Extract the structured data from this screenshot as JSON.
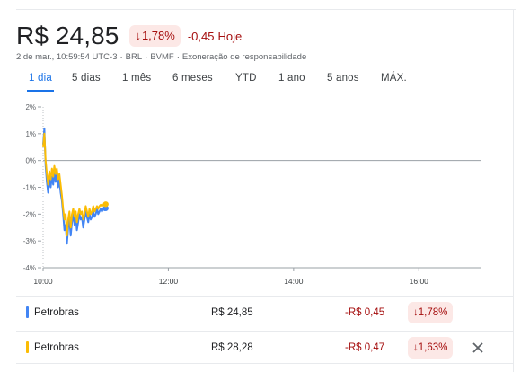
{
  "quote": {
    "price": "R$ 24,85",
    "pct_change": "1,78%",
    "abs_change": "-0,45",
    "today_label": "Hoje",
    "down_arrow": "↓"
  },
  "meta": {
    "timestamp": "2 de mar., 10:59:54 UTC-3",
    "currency": "BRL",
    "exchange": "BVMF",
    "disclaimer": "Exoneração de responsabilidade",
    "separator": "·"
  },
  "tabs": [
    {
      "label": "1 dia",
      "active": true
    },
    {
      "label": "5 dias",
      "active": false
    },
    {
      "label": "1 mês",
      "active": false
    },
    {
      "label": "6 meses",
      "active": false
    },
    {
      "label": "YTD",
      "active": false
    },
    {
      "label": "1 ano",
      "active": false
    },
    {
      "label": "5 anos",
      "active": false
    },
    {
      "label": "MÁX.",
      "active": false
    }
  ],
  "chart_data": {
    "type": "line",
    "y_tick_labels": [
      "2%",
      "1%",
      "0%",
      "-1%",
      "-2%",
      "-3%",
      "-4%"
    ],
    "y_ticks": [
      2,
      1,
      0,
      -1,
      -2,
      -3,
      -4
    ],
    "ylim": [
      -4,
      2
    ],
    "x_tick_labels": [
      "10:00",
      "12:00",
      "14:00",
      "16:00"
    ],
    "x_ticks_hours": [
      10,
      12,
      14,
      16
    ],
    "xlim_hours": [
      10,
      17
    ],
    "baseline": 0,
    "series": [
      {
        "name": "Petrobras",
        "color": "#4285f4",
        "x": [
          10.0,
          10.02,
          10.04,
          10.06,
          10.08,
          10.1,
          10.12,
          10.14,
          10.16,
          10.18,
          10.2,
          10.22,
          10.24,
          10.26,
          10.28,
          10.3,
          10.32,
          10.34,
          10.36,
          10.38,
          10.4,
          10.42,
          10.44,
          10.46,
          10.48,
          10.5,
          10.52,
          10.54,
          10.56,
          10.58,
          10.6,
          10.62,
          10.64,
          10.66,
          10.68,
          10.7,
          10.72,
          10.74,
          10.76,
          10.78,
          10.8,
          10.82,
          10.84,
          10.86,
          10.88,
          10.9,
          10.92,
          10.94,
          10.96,
          10.98,
          11.0
        ],
        "values": [
          0.6,
          1.2,
          -0.2,
          -0.8,
          -1.2,
          -0.7,
          -1.0,
          -0.6,
          -0.9,
          -0.4,
          -0.8,
          -0.5,
          -1.0,
          -0.7,
          -1.2,
          -1.5,
          -2.0,
          -2.6,
          -2.4,
          -3.1,
          -2.5,
          -2.2,
          -2.8,
          -2.3,
          -2.0,
          -2.4,
          -2.1,
          -2.6,
          -2.3,
          -2.0,
          -2.2,
          -2.1,
          -2.5,
          -2.2,
          -1.9,
          -2.1,
          -2.3,
          -2.0,
          -2.2,
          -2.1,
          -1.9,
          -2.1,
          -2.0,
          -1.8,
          -2.0,
          -1.9,
          -1.8,
          -1.9,
          -1.8,
          -1.85,
          -1.78
        ]
      },
      {
        "name": "Petrobras",
        "color": "#fbbc04",
        "x": [
          10.0,
          10.02,
          10.04,
          10.06,
          10.08,
          10.1,
          10.12,
          10.14,
          10.16,
          10.18,
          10.2,
          10.22,
          10.24,
          10.26,
          10.28,
          10.3,
          10.32,
          10.34,
          10.36,
          10.38,
          10.4,
          10.42,
          10.44,
          10.46,
          10.48,
          10.5,
          10.52,
          10.54,
          10.56,
          10.58,
          10.6,
          10.62,
          10.64,
          10.66,
          10.68,
          10.7,
          10.72,
          10.74,
          10.76,
          10.78,
          10.8,
          10.82,
          10.84,
          10.86,
          10.88,
          10.9,
          10.92,
          10.94,
          10.96,
          10.98,
          11.0
        ],
        "values": [
          0.5,
          1.0,
          0.0,
          -0.5,
          -0.9,
          -0.4,
          -0.7,
          -0.3,
          -0.6,
          -0.2,
          -0.5,
          -0.3,
          -0.7,
          -0.5,
          -0.9,
          -1.3,
          -1.8,
          -2.2,
          -2.0,
          -2.8,
          -2.2,
          -1.9,
          -2.5,
          -2.0,
          -1.8,
          -2.1,
          -1.9,
          -2.3,
          -2.0,
          -1.8,
          -2.0,
          -1.9,
          -2.2,
          -2.0,
          -1.7,
          -1.9,
          -2.1,
          -1.8,
          -2.0,
          -1.9,
          -1.7,
          -1.9,
          -1.8,
          -1.7,
          -1.8,
          -1.7,
          -1.65,
          -1.7,
          -1.65,
          -1.68,
          -1.63
        ]
      }
    ]
  },
  "comparison": {
    "rows": [
      {
        "name": "Petrobras",
        "price": "R$ 24,85",
        "diff": "-R$ 0,45",
        "pct": "1,78%",
        "color": "#4285f4"
      },
      {
        "name": "Petrobras",
        "price": "R$ 28,28",
        "diff": "-R$ 0,47",
        "pct": "1,63%",
        "color": "#fbbc04"
      }
    ]
  },
  "colors": {
    "accent": "#1a73e8",
    "negative": "#a50e0e",
    "negative_bg": "#fce8e6"
  }
}
